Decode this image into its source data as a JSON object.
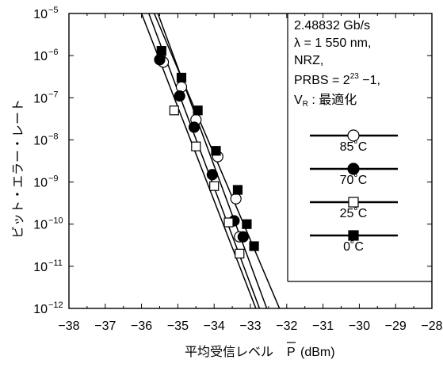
{
  "chart_data": {
    "type": "scatter",
    "xlabel_main": "平均受信レベル",
    "xlabel_symbol": "P",
    "xlabel_unit": "(dBm)",
    "ylabel": "ビット・エラー・レート",
    "x_ticks": [
      "−38",
      "−37",
      "−36",
      "−35",
      "−34",
      "−33",
      "−32",
      "−31",
      "−30",
      "−29",
      "−28"
    ],
    "y_tick_exponents": [
      "−5",
      "−6",
      "−7",
      "−8",
      "−9",
      "−10",
      "−11",
      "−12"
    ],
    "y_tick_base": "10",
    "xlim": [
      -38,
      -28
    ],
    "ylim_log10": [
      -12,
      -5
    ],
    "y_scale": "log",
    "grid": false,
    "conditions": {
      "line1": "2.48832 Gb/s",
      "line2": "λ = 1 550 nm,",
      "line3": "NRZ,",
      "line4_prefix": "PRBS = 2",
      "line4_sup": "23",
      "line4_suffix": " −1,",
      "line5_v": "V",
      "line5_sub": "R",
      "line5_suffix": " : 最適化"
    },
    "legend_placement": "right",
    "series": [
      {
        "name": "85˚C",
        "marker": "open-circle",
        "points": [
          {
            "x": -35.4,
            "y": 7e-07
          },
          {
            "x": -34.9,
            "y": 1.8e-07
          },
          {
            "x": -34.5,
            "y": 3e-08
          },
          {
            "x": -33.9,
            "y": 4e-09
          },
          {
            "x": -33.4,
            "y": 4e-10
          },
          {
            "x": -33.3,
            "y": 5e-11
          }
        ],
        "fit": [
          [
            -35.55,
            1e-05
          ],
          [
            -32.55,
            1e-12
          ]
        ]
      },
      {
        "name": "70˚C",
        "marker": "filled-circle",
        "points": [
          {
            "x": -35.5,
            "y": 8e-07
          },
          {
            "x": -34.95,
            "y": 1.1e-07
          },
          {
            "x": -34.55,
            "y": 2e-08
          },
          {
            "x": -34.05,
            "y": 1.5e-09
          },
          {
            "x": -33.45,
            "y": 1.2e-10
          },
          {
            "x": -33.2,
            "y": 5e-11
          }
        ],
        "fit": [
          [
            -35.8,
            1e-05
          ],
          [
            -32.75,
            1e-12
          ]
        ]
      },
      {
        "name": "25˚C",
        "marker": "open-square",
        "points": [
          {
            "x": -35.1,
            "y": 5e-08
          },
          {
            "x": -34.5,
            "y": 7e-09
          },
          {
            "x": -34.0,
            "y": 8e-10
          },
          {
            "x": -33.6,
            "y": 1.1e-10
          },
          {
            "x": -33.3,
            "y": 2e-11
          }
        ],
        "fit": [
          [
            -36.0,
            1e-05
          ],
          [
            -32.85,
            1e-12
          ]
        ]
      },
      {
        "name": "0˚C",
        "marker": "filled-square",
        "points": [
          {
            "x": -35.45,
            "y": 1.3e-06
          },
          {
            "x": -34.9,
            "y": 3e-07
          },
          {
            "x": -34.45,
            "y": 5e-08
          },
          {
            "x": -33.95,
            "y": 5.5e-09
          },
          {
            "x": -33.35,
            "y": 6.5e-10
          },
          {
            "x": -33.1,
            "y": 1e-10
          },
          {
            "x": -32.9,
            "y": 3e-11
          }
        ],
        "fit": [
          [
            -35.65,
            1e-05
          ],
          [
            -32.2,
            1e-12
          ]
        ]
      }
    ]
  }
}
